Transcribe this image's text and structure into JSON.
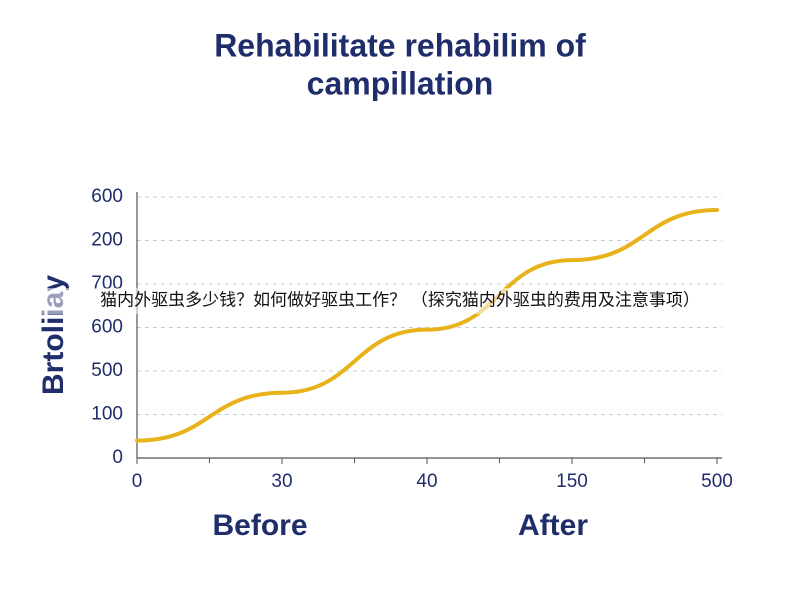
{
  "chart_data": {
    "type": "line",
    "title": [
      "Rehabilitate rehabilim of",
      "campillation"
    ],
    "y_label": "Brtoliiay",
    "x_labels": [
      "Before",
      "After"
    ],
    "overlay_text": "猫内外驱虫多少钱？如何做好驱虫工作？ （探究猫内外驱虫的费用及注意事项）",
    "categories": [
      "0",
      "30",
      "40",
      "150",
      "500"
    ],
    "series": [
      {
        "name": "line",
        "color": "#e8b21a",
        "values": [
          0.4,
          1.5,
          2.95,
          4.55,
          5.7
        ]
      }
    ],
    "ylim": [
      0,
      6
    ],
    "yticks": [
      {
        "value": 0,
        "label": "0"
      },
      {
        "value": 1,
        "label": "100"
      },
      {
        "value": 2,
        "label": "500"
      },
      {
        "value": 3,
        "label": "600"
      },
      {
        "value": 4,
        "label": "700"
      },
      {
        "value": 5,
        "label": "200"
      },
      {
        "value": 6,
        "label": "600"
      }
    ],
    "grid": true
  }
}
